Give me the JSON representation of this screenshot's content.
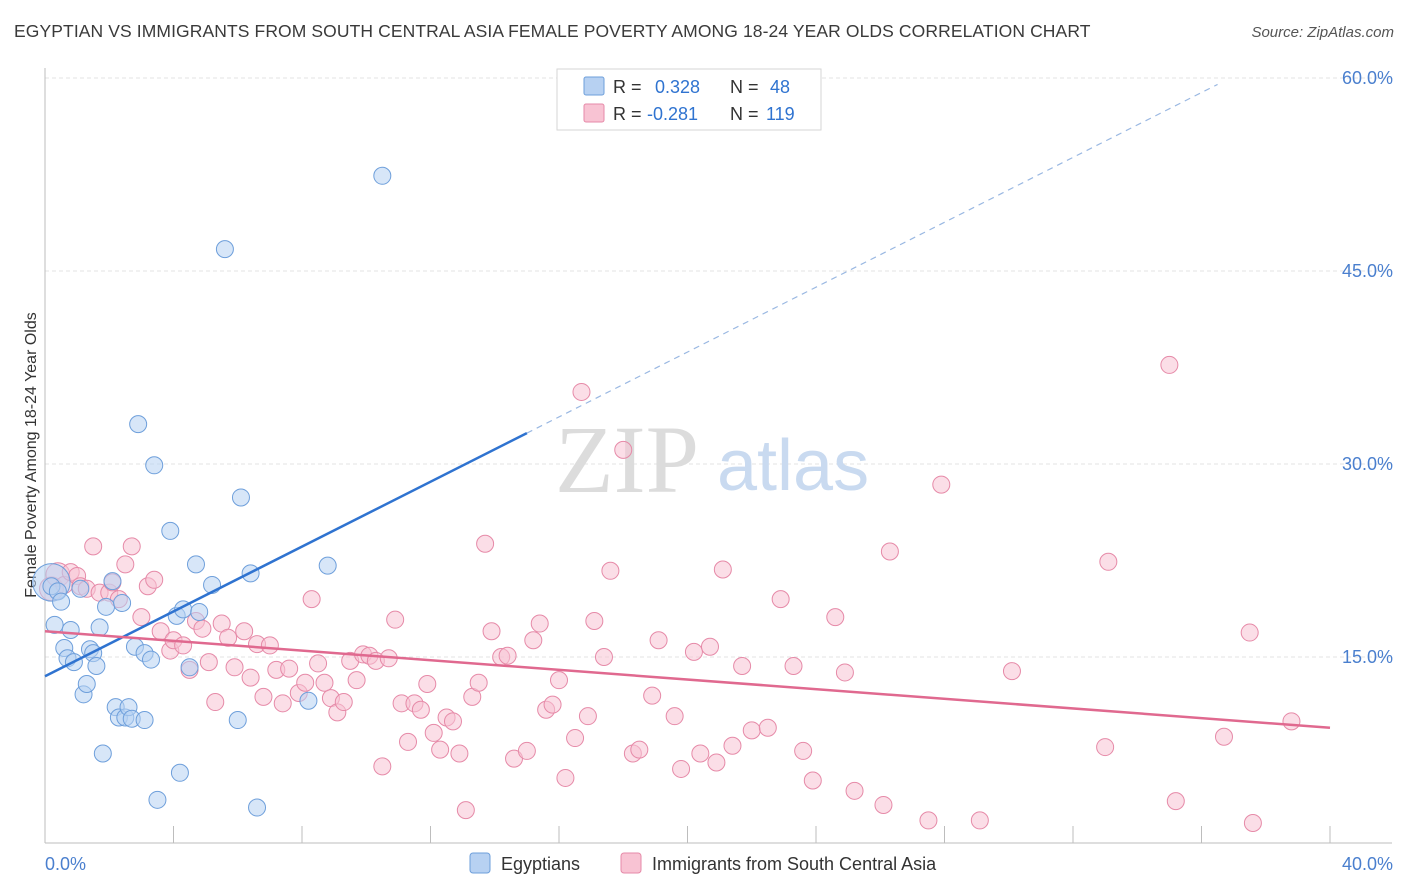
{
  "header": {
    "title": "EGYPTIAN VS IMMIGRANTS FROM SOUTH CENTRAL ASIA FEMALE POVERTY AMONG 18-24 YEAR OLDS CORRELATION CHART",
    "source": "Source: ZipAtlas.com"
  },
  "watermark": {
    "zip": "ZIP",
    "atlas": "atlas"
  },
  "stats": [
    {
      "r_label": "R =",
      "r_value": "0.328",
      "n_label": "N =",
      "n_value": "48"
    },
    {
      "r_label": "R =",
      "r_value": "-0.281",
      "n_label": "N =",
      "n_value": "119"
    }
  ],
  "colors": {
    "blue_fill": "#b7d1f2",
    "blue_stroke": "#6e9fdb",
    "blue_line": "#2f73d0",
    "pink_fill": "#f8c3d3",
    "pink_stroke": "#e68aa8",
    "pink_line": "#e0698f",
    "axis_text": "#4a7fce",
    "grid": "#e3e3e3"
  },
  "chart_data": {
    "type": "scatter",
    "title": "EGYPTIAN VS IMMIGRANTS FROM SOUTH CENTRAL ASIA FEMALE POVERTY AMONG 18-24 YEAR OLDS CORRELATION CHART",
    "xlabel": "",
    "ylabel": "Female Poverty Among 18-24 Year Olds",
    "xlim": [
      0,
      40
    ],
    "ylim": [
      0,
      60
    ],
    "x_tick_labels": [
      {
        "value": 0,
        "label": "0.0%"
      },
      {
        "value": 40,
        "label": "40.0%"
      }
    ],
    "y_tick_labels": [
      {
        "value": 15,
        "label": "15.0%"
      },
      {
        "value": 30,
        "label": "30.0%"
      },
      {
        "value": 45,
        "label": "45.0%"
      },
      {
        "value": 60,
        "label": "60.0%"
      }
    ],
    "legend_position": "bottom-center",
    "series": [
      {
        "name": "Egyptians",
        "color": "blue",
        "r": 0.328,
        "n": 48,
        "trend": {
          "x0": 0,
          "y0": 13.5,
          "x1": 15,
          "y1": 32.4,
          "dash_x1": 36.5,
          "dash_y1": 59.5
        },
        "points": [
          [
            0.2,
            20.8,
            2.2
          ],
          [
            0.2,
            20.5,
            1
          ],
          [
            0.3,
            17.5,
            1
          ],
          [
            0.4,
            20.1,
            1
          ],
          [
            0.5,
            19.3,
            1
          ],
          [
            0.6,
            15.7,
            1
          ],
          [
            0.7,
            14.9,
            1
          ],
          [
            0.8,
            17.1,
            1
          ],
          [
            0.9,
            14.6,
            1
          ],
          [
            1.1,
            20.3,
            1
          ],
          [
            1.2,
            12.1,
            1
          ],
          [
            1.3,
            12.9,
            1
          ],
          [
            1.4,
            15.6,
            1
          ],
          [
            1.5,
            15.3,
            1
          ],
          [
            1.6,
            14.3,
            1
          ],
          [
            1.7,
            17.3,
            1
          ],
          [
            1.8,
            7.5,
            1
          ],
          [
            1.9,
            18.9,
            1
          ],
          [
            2.1,
            20.9,
            1
          ],
          [
            2.2,
            11.1,
            1
          ],
          [
            2.3,
            10.3,
            1
          ],
          [
            2.4,
            19.2,
            1
          ],
          [
            2.5,
            10.3,
            1
          ],
          [
            2.6,
            11.1,
            1
          ],
          [
            2.7,
            10.2,
            1
          ],
          [
            2.8,
            15.8,
            1
          ],
          [
            2.9,
            33.1,
            1
          ],
          [
            3.1,
            15.3,
            1
          ],
          [
            3.1,
            10.1,
            1
          ],
          [
            3.3,
            14.8,
            1
          ],
          [
            3.4,
            29.9,
            1
          ],
          [
            3.5,
            3.9,
            1
          ],
          [
            3.9,
            24.8,
            1
          ],
          [
            4.1,
            18.2,
            1
          ],
          [
            4.2,
            6.0,
            1
          ],
          [
            4.3,
            18.7,
            1
          ],
          [
            4.5,
            14.2,
            1
          ],
          [
            4.7,
            22.2,
            1
          ],
          [
            4.8,
            18.5,
            1
          ],
          [
            5.2,
            20.6,
            1
          ],
          [
            5.6,
            46.7,
            1
          ],
          [
            6.0,
            10.1,
            1
          ],
          [
            6.1,
            27.4,
            1
          ],
          [
            6.4,
            21.5,
            1
          ],
          [
            6.6,
            3.3,
            1
          ],
          [
            8.2,
            11.6,
            1
          ],
          [
            8.8,
            22.1,
            1
          ],
          [
            10.5,
            52.4,
            1
          ]
        ]
      },
      {
        "name": "Immigrants from South Central Asia",
        "color": "pink",
        "r": -0.281,
        "n": 119,
        "trend": {
          "x0": 0,
          "y0": 17.0,
          "x1": 40,
          "y1": 9.5
        },
        "points": [
          [
            0.2,
            20.3,
            1.4
          ],
          [
            0.4,
            21.4,
            1.4
          ],
          [
            0.6,
            20.6,
            1
          ],
          [
            0.8,
            21.6,
            1
          ],
          [
            1.0,
            21.3,
            1
          ],
          [
            1.1,
            20.5,
            1
          ],
          [
            1.3,
            20.3,
            1
          ],
          [
            1.5,
            23.6,
            1
          ],
          [
            1.7,
            20.0,
            1
          ],
          [
            2.0,
            20.0,
            1
          ],
          [
            2.1,
            20.8,
            1
          ],
          [
            2.3,
            19.5,
            1
          ],
          [
            2.5,
            22.2,
            1
          ],
          [
            2.7,
            23.6,
            1
          ],
          [
            3.0,
            18.1,
            1
          ],
          [
            3.2,
            20.5,
            1
          ],
          [
            3.4,
            21.0,
            1
          ],
          [
            3.6,
            17.0,
            1
          ],
          [
            3.9,
            15.5,
            1
          ],
          [
            4.0,
            16.3,
            1
          ],
          [
            4.3,
            15.9,
            1
          ],
          [
            4.5,
            14.0,
            1
          ],
          [
            4.7,
            17.8,
            1
          ],
          [
            4.9,
            17.2,
            1
          ],
          [
            5.1,
            14.6,
            1
          ],
          [
            5.3,
            11.5,
            1
          ],
          [
            5.5,
            17.6,
            1
          ],
          [
            5.7,
            16.5,
            1
          ],
          [
            5.9,
            14.2,
            1
          ],
          [
            6.2,
            17.0,
            1
          ],
          [
            6.4,
            13.4,
            1
          ],
          [
            6.6,
            16.0,
            1
          ],
          [
            6.8,
            11.9,
            1
          ],
          [
            7.0,
            15.9,
            1
          ],
          [
            7.2,
            14.0,
            1
          ],
          [
            7.4,
            11.4,
            1
          ],
          [
            7.6,
            14.1,
            1
          ],
          [
            7.9,
            12.2,
            1
          ],
          [
            8.1,
            13.0,
            1
          ],
          [
            8.3,
            19.5,
            1
          ],
          [
            8.5,
            14.5,
            1
          ],
          [
            8.7,
            13.0,
            1
          ],
          [
            8.9,
            11.8,
            1
          ],
          [
            9.1,
            10.7,
            1
          ],
          [
            9.3,
            11.5,
            1
          ],
          [
            9.5,
            14.7,
            1
          ],
          [
            9.7,
            13.2,
            1
          ],
          [
            9.9,
            15.2,
            1
          ],
          [
            10.1,
            15.1,
            1
          ],
          [
            10.3,
            14.7,
            1
          ],
          [
            10.5,
            6.5,
            1
          ],
          [
            10.7,
            14.9,
            1
          ],
          [
            10.9,
            17.9,
            1
          ],
          [
            11.1,
            11.4,
            1
          ],
          [
            11.3,
            8.4,
            1
          ],
          [
            11.5,
            11.4,
            1
          ],
          [
            11.7,
            10.9,
            1
          ],
          [
            11.9,
            12.9,
            1
          ],
          [
            12.1,
            9.1,
            1
          ],
          [
            12.3,
            7.8,
            1
          ],
          [
            12.5,
            10.3,
            1
          ],
          [
            12.7,
            10.0,
            1
          ],
          [
            12.9,
            7.5,
            1
          ],
          [
            13.1,
            3.1,
            1
          ],
          [
            13.3,
            11.9,
            1
          ],
          [
            13.5,
            13.0,
            1
          ],
          [
            13.7,
            23.8,
            1
          ],
          [
            13.9,
            17.0,
            1
          ],
          [
            14.2,
            15.0,
            1
          ],
          [
            14.4,
            15.1,
            1
          ],
          [
            14.6,
            7.1,
            1
          ],
          [
            15.0,
            7.7,
            1
          ],
          [
            15.2,
            16.3,
            1
          ],
          [
            15.4,
            17.6,
            1
          ],
          [
            15.6,
            10.9,
            1
          ],
          [
            15.8,
            11.3,
            1
          ],
          [
            16.0,
            13.2,
            1
          ],
          [
            16.2,
            5.6,
            1
          ],
          [
            16.5,
            8.7,
            1
          ],
          [
            16.7,
            35.6,
            1
          ],
          [
            16.9,
            10.4,
            1
          ],
          [
            17.1,
            17.8,
            1
          ],
          [
            17.4,
            15.0,
            1
          ],
          [
            17.6,
            21.7,
            1
          ],
          [
            18.0,
            31.1,
            1
          ],
          [
            18.3,
            7.5,
            1
          ],
          [
            18.5,
            7.8,
            1
          ],
          [
            18.9,
            12.0,
            1
          ],
          [
            19.1,
            16.3,
            1
          ],
          [
            19.6,
            10.4,
            1
          ],
          [
            19.8,
            6.3,
            1
          ],
          [
            20.2,
            15.4,
            1
          ],
          [
            20.4,
            7.5,
            1
          ],
          [
            20.7,
            15.8,
            1
          ],
          [
            20.9,
            6.8,
            1
          ],
          [
            21.1,
            21.8,
            1
          ],
          [
            21.4,
            8.1,
            1
          ],
          [
            21.7,
            14.3,
            1
          ],
          [
            22.0,
            9.3,
            1
          ],
          [
            22.5,
            9.5,
            1
          ],
          [
            22.9,
            19.5,
            1
          ],
          [
            23.3,
            14.3,
            1
          ],
          [
            23.6,
            7.7,
            1
          ],
          [
            23.9,
            5.4,
            1
          ],
          [
            24.6,
            18.1,
            1
          ],
          [
            24.9,
            13.8,
            1
          ],
          [
            25.2,
            4.6,
            1
          ],
          [
            26.1,
            3.5,
            1
          ],
          [
            26.3,
            23.2,
            1
          ],
          [
            27.5,
            2.3,
            1
          ],
          [
            27.9,
            28.4,
            1
          ],
          [
            29.1,
            2.3,
            1
          ],
          [
            30.1,
            13.9,
            1
          ],
          [
            33.0,
            8.0,
            1
          ],
          [
            33.1,
            22.4,
            1
          ],
          [
            35.0,
            37.7,
            1
          ],
          [
            35.2,
            3.8,
            1
          ],
          [
            36.7,
            8.8,
            1
          ],
          [
            37.5,
            16.9,
            1
          ],
          [
            37.6,
            2.1,
            1
          ],
          [
            38.8,
            10.0,
            1
          ]
        ]
      }
    ]
  }
}
